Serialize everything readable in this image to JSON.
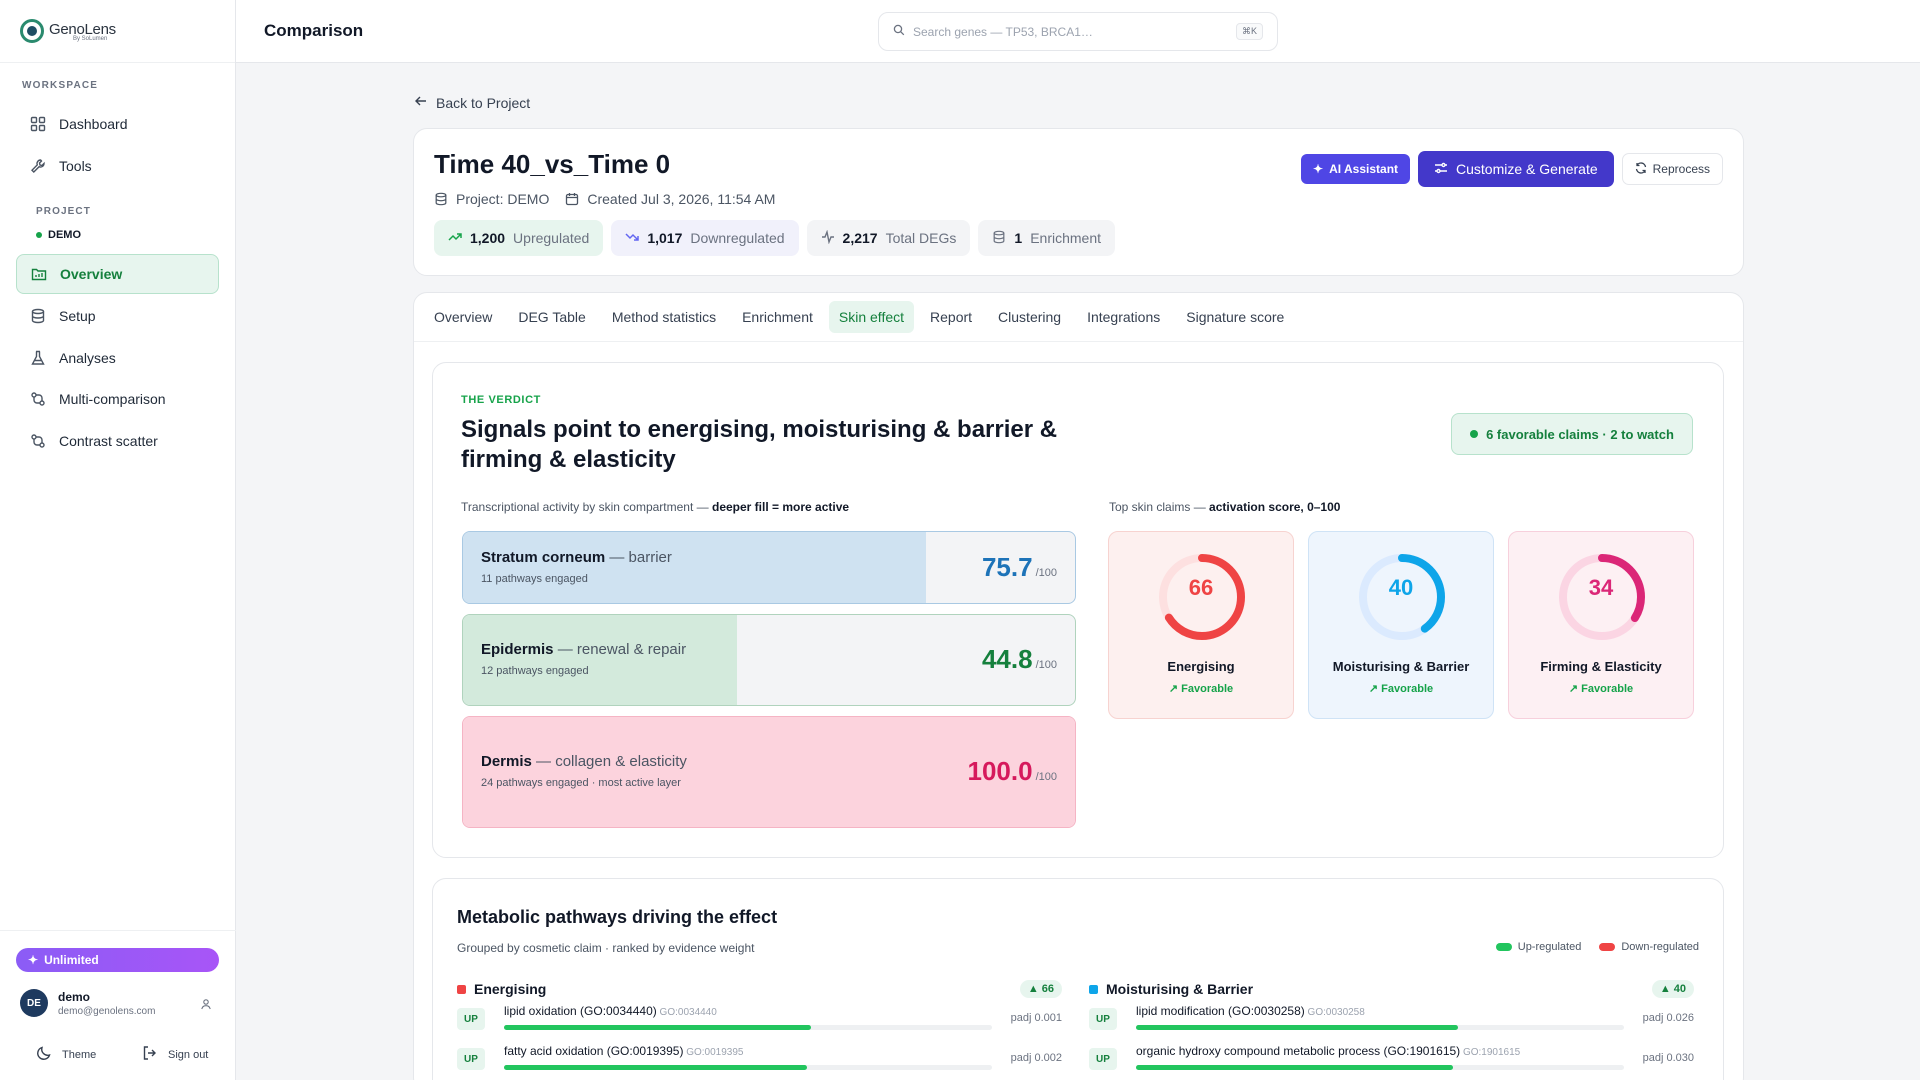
{
  "brand": {
    "name": "GenoLens",
    "sub": "By SoLumen"
  },
  "sidebar": {
    "workspace_label": "WORKSPACE",
    "items": [
      {
        "label": "Dashboard",
        "icon": "grid-icon"
      },
      {
        "label": "Tools",
        "icon": "wrench-icon"
      }
    ],
    "project_label": "PROJECT",
    "project_name": "DEMO",
    "project_items": [
      {
        "label": "Overview",
        "icon": "folder-chart-icon",
        "active": true
      },
      {
        "label": "Setup",
        "icon": "database-icon"
      },
      {
        "label": "Analyses",
        "icon": "flask-icon"
      },
      {
        "label": "Multi-comparison",
        "icon": "compare-icon"
      },
      {
        "label": "Contrast scatter",
        "icon": "compare-icon"
      }
    ],
    "plan": "Unlimited",
    "user": {
      "initials": "DE",
      "name": "demo",
      "email": "demo@genolens.com"
    },
    "theme_label": "Theme",
    "signout_label": "Sign out"
  },
  "header": {
    "title": "Comparison",
    "search_placeholder": "Search genes — TP53, BRCA1…",
    "shortcut": "⌘K"
  },
  "back_label": "Back to Project",
  "comparison": {
    "title": "Time 40_vs_Time 0",
    "project": "Project: DEMO",
    "created": "Created Jul 3, 2026, 11:54 AM",
    "stats": [
      {
        "value": "1,200",
        "label": "Upregulated"
      },
      {
        "value": "1,017",
        "label": "Downregulated"
      },
      {
        "value": "2,217",
        "label": "Total DEGs"
      },
      {
        "value": "1",
        "label": "Enrichment"
      }
    ],
    "buttons": {
      "ai": "AI Assistant",
      "generate": "Customize & Generate",
      "reprocess": "Reprocess"
    }
  },
  "tabs": [
    "Overview",
    "DEG Table",
    "Method statistics",
    "Enrichment",
    "Skin effect",
    "Report",
    "Clustering",
    "Integrations",
    "Signature score"
  ],
  "active_tab": "Skin effect",
  "verdict": {
    "eyebrow": "THE VERDICT",
    "headline": "Signals point to energising, moisturising & barrier & firming & elasticity",
    "badge": "6 favorable claims · 2 to watch",
    "left_caption": "Transcriptional activity by skin compartment —",
    "left_caption_bold": "deeper fill = more active",
    "right_caption": "Top skin claims —",
    "right_caption_bold": "activation score, 0–100",
    "compartments": [
      {
        "name": "Stratum corneum",
        "desc": "— barrier",
        "sub": "11 pathways engaged",
        "score": "75.7",
        "fraction": 0.757,
        "unit": "/100",
        "fill": "#cfe2f1",
        "border": "#a9c9e3",
        "text": "#1d73b8"
      },
      {
        "name": "Epidermis",
        "desc": "— renewal & repair",
        "sub": "12 pathways engaged",
        "score": "44.8",
        "fraction": 0.448,
        "unit": "/100",
        "fill": "#d3eadc",
        "border": "#b0d3bd",
        "text": "#15803d"
      },
      {
        "name": "Dermis",
        "desc": "— collagen & elasticity",
        "sub": "24 pathways engaged · most active layer",
        "score": "100.0",
        "fraction": 1.0,
        "unit": "/100",
        "fill": "#fcd3dd",
        "border": "#f5b4c4",
        "text": "#d6195c"
      }
    ],
    "claims": [
      {
        "value": 66,
        "name": "Energising",
        "status": "Favorable",
        "color": "#ef4444",
        "track": "#fde0e0",
        "bg": "#fdf0ef",
        "border": "#f7d3d0"
      },
      {
        "value": 40,
        "name": "Moisturising & Barrier",
        "status": "Favorable",
        "color": "#0ea5e9",
        "track": "#dbeafe",
        "bg": "#eef5fd",
        "border": "#cfe3f6"
      },
      {
        "value": 34,
        "name": "Firming & Elasticity",
        "status": "Favorable",
        "color": "#db2777",
        "track": "#fbd5e3",
        "bg": "#fdf0f3",
        "border": "#f7d0dc"
      }
    ]
  },
  "pathways": {
    "title": "Metabolic pathways driving the effect",
    "subtitle": "Grouped by cosmetic claim · ranked by evidence weight",
    "legend_up": "Up-regulated",
    "legend_down": "Down-regulated",
    "groups": [
      {
        "name": "Energising",
        "count": "▲ 66",
        "color": "#ef4444",
        "rows": [
          {
            "dir": "UP",
            "name": "lipid oxidation (GO:0034440)",
            "go": "GO:0034440",
            "padj": "padj 0.001",
            "weight": 0.63
          },
          {
            "dir": "UP",
            "name": "fatty acid oxidation (GO:0019395)",
            "go": "GO:0019395",
            "padj": "padj 0.002",
            "weight": 0.62
          }
        ]
      },
      {
        "name": "Moisturising & Barrier",
        "count": "▲ 40",
        "color": "#0ea5e9",
        "rows": [
          {
            "dir": "UP",
            "name": "lipid modification (GO:0030258)",
            "go": "GO:0030258",
            "padj": "padj 0.026",
            "weight": 0.66
          },
          {
            "dir": "UP",
            "name": "organic hydroxy compound metabolic process (GO:1901615)",
            "go": "GO:1901615",
            "padj": "padj 0.030",
            "weight": 0.65
          }
        ]
      }
    ]
  }
}
